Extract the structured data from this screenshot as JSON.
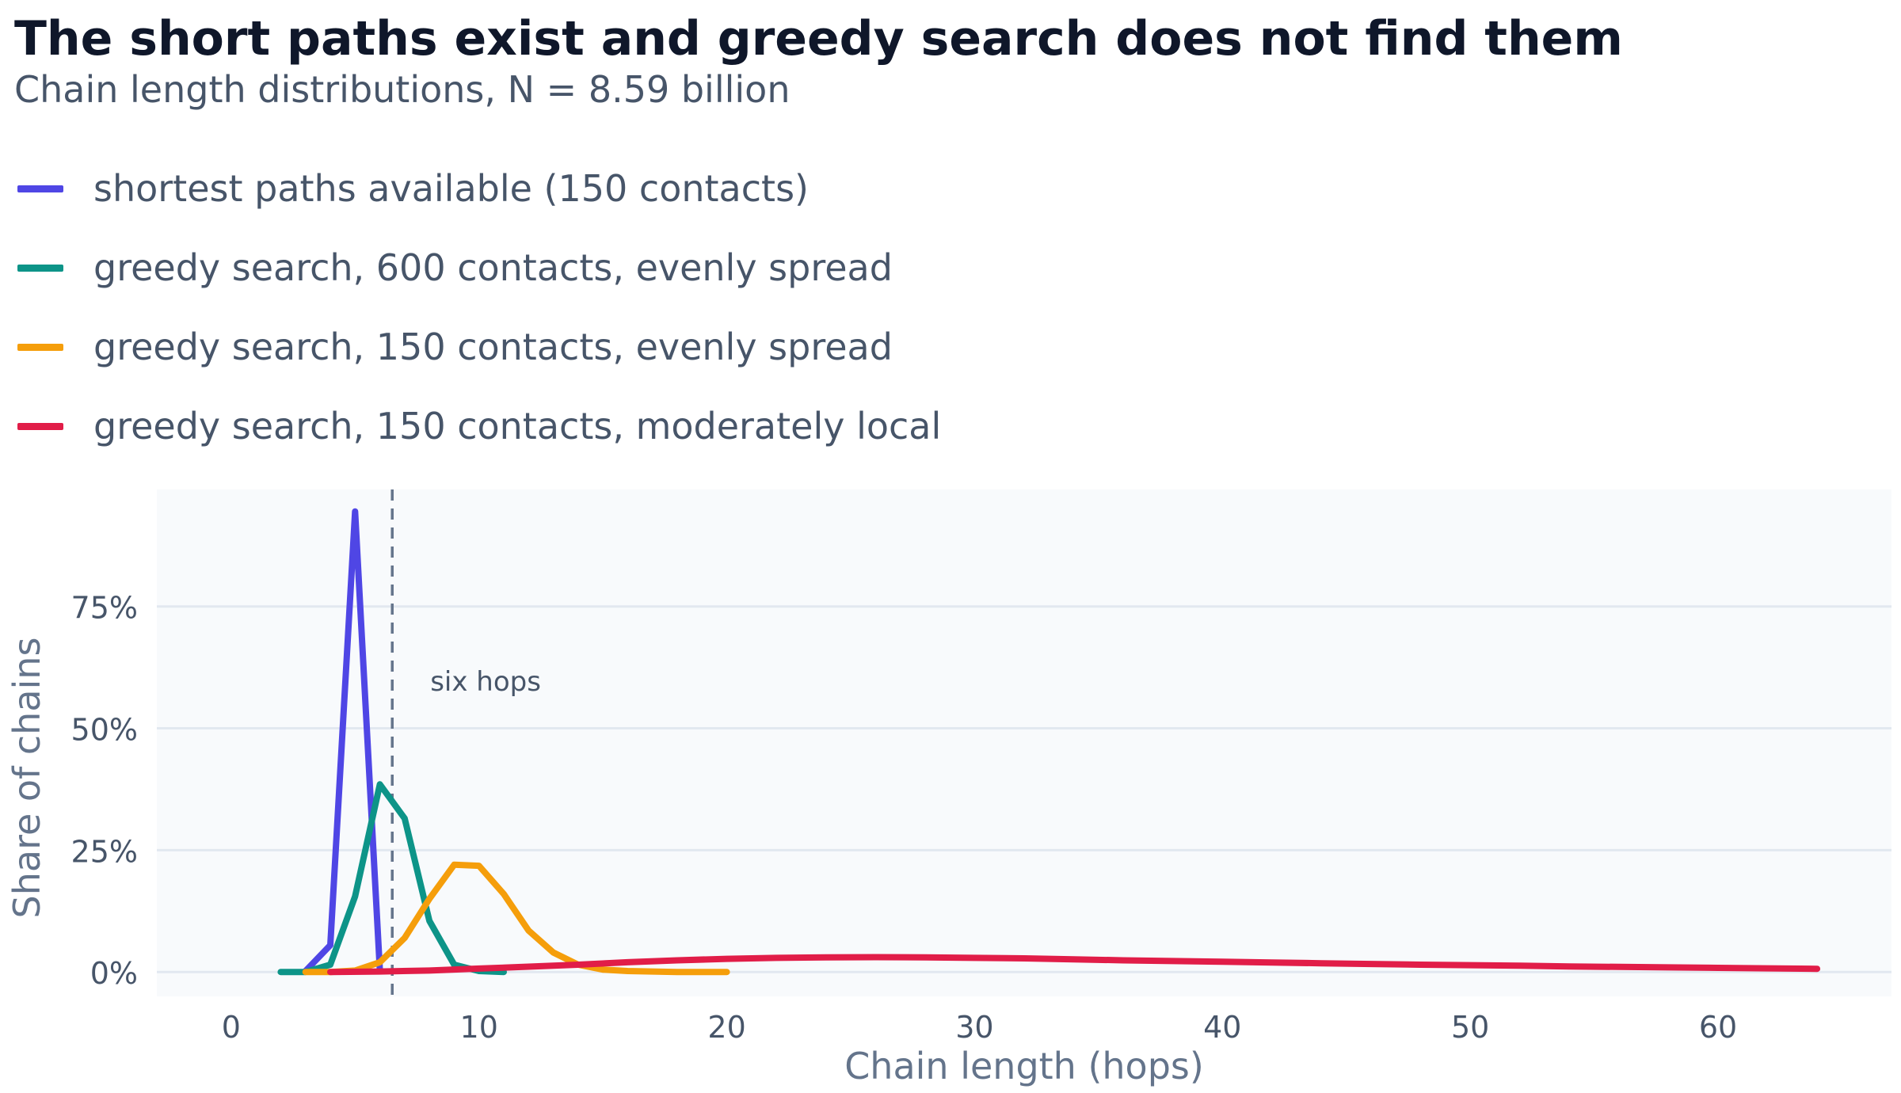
{
  "title": "The short paths exist and greedy search does not find them",
  "subtitle": "Chain length distributions, N = 8.59 billion",
  "chart_data": {
    "type": "line",
    "xlabel": "Chain length (hops)",
    "ylabel": "Share of chains",
    "xlim": [
      -3,
      67
    ],
    "ylim": [
      -5,
      99
    ],
    "xticks": [
      0,
      10,
      20,
      30,
      40,
      50,
      60
    ],
    "xtick_labels": [
      "0",
      "10",
      "20",
      "30",
      "40",
      "50",
      "60"
    ],
    "yticks": [
      0,
      25,
      50,
      75
    ],
    "ytick_labels": [
      "0%",
      "25%",
      "50%",
      "75%"
    ],
    "grid": "horizontal",
    "legend_position": "top-left",
    "annotation": {
      "text": "six hops",
      "x": 6.5
    },
    "series": [
      {
        "name": "shortest paths available (150 contacts)",
        "color": "#4f46e5",
        "x": [
          3,
          4,
          5,
          6
        ],
        "y": [
          0.2,
          5.5,
          94.5,
          0.3
        ]
      },
      {
        "name": "greedy search, 600 contacts, evenly spread",
        "color": "#0d9488",
        "x": [
          2,
          3,
          4,
          5,
          6,
          7,
          8,
          9,
          10,
          11
        ],
        "y": [
          0,
          0,
          1.5,
          15.5,
          38.5,
          31.5,
          10.5,
          1.5,
          0.2,
          0
        ]
      },
      {
        "name": "greedy search, 150 contacts, evenly spread",
        "color": "#f59e0b",
        "x": [
          3,
          4,
          5,
          6,
          7,
          8,
          9,
          10,
          11,
          12,
          13,
          14,
          15,
          16,
          17,
          18,
          19,
          20
        ],
        "y": [
          0,
          0,
          0.3,
          2,
          7,
          15,
          22,
          21.8,
          16,
          8.5,
          4,
          1.5,
          0.5,
          0.2,
          0.1,
          0,
          0,
          0
        ]
      },
      {
        "name": "greedy search, 150 contacts, moderately local",
        "color": "#e11d48",
        "x": [
          4,
          6,
          8,
          10,
          12,
          14,
          16,
          18,
          20,
          22,
          24,
          26,
          28,
          30,
          32,
          34,
          36,
          38,
          40,
          42,
          44,
          46,
          48,
          50,
          52,
          54,
          56,
          58,
          60,
          62,
          64
        ],
        "y": [
          0,
          0.1,
          0.3,
          0.7,
          1.1,
          1.5,
          2,
          2.4,
          2.7,
          2.9,
          3,
          3.05,
          3,
          2.9,
          2.8,
          2.6,
          2.4,
          2.25,
          2.1,
          1.95,
          1.8,
          1.65,
          1.5,
          1.4,
          1.3,
          1.15,
          1.05,
          0.95,
          0.85,
          0.75,
          0.65
        ]
      }
    ]
  }
}
